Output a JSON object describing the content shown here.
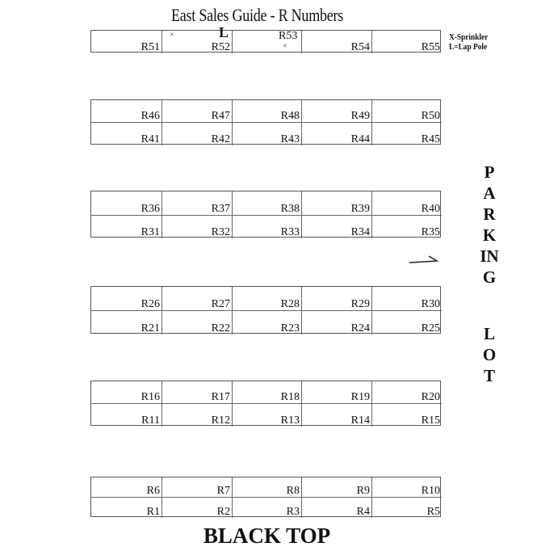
{
  "title": "East Sales Guide - R Numbers",
  "legend": {
    "sprinkler": "X-Sprinkler",
    "lap_pole": "L=Lap Pole"
  },
  "markers": {
    "lap_pole": "L",
    "sprinkler": "×"
  },
  "top_row": [
    "R51",
    "R52",
    "R53",
    "R54",
    "R55"
  ],
  "blocks": [
    {
      "rows": [
        [
          "R46",
          "R47",
          "R48",
          "R49",
          "R50"
        ],
        [
          "R41",
          "R42",
          "R43",
          "R44",
          "R45"
        ]
      ]
    },
    {
      "rows": [
        [
          "R36",
          "R37",
          "R38",
          "R39",
          "R40"
        ],
        [
          "R31",
          "R32",
          "R33",
          "R34",
          "R35"
        ]
      ]
    },
    {
      "rows": [
        [
          "R26",
          "R27",
          "R28",
          "R29",
          "R30"
        ],
        [
          "R21",
          "R22",
          "R23",
          "R24",
          "R25"
        ]
      ]
    },
    {
      "rows": [
        [
          "R16",
          "R17",
          "R18",
          "R19",
          "R20"
        ],
        [
          "R11",
          "R12",
          "R13",
          "R14",
          "R15"
        ]
      ]
    },
    {
      "rows": [
        [
          "R6",
          "R7",
          "R8",
          "R9",
          "R10"
        ],
        [
          "R1",
          "R2",
          "R3",
          "R4",
          "R5"
        ]
      ]
    }
  ],
  "parking_lot": {
    "word1": "PARKING",
    "word2": "LOT"
  },
  "black_top": "BLACK TOP",
  "arrow-icon": "arrow-right"
}
